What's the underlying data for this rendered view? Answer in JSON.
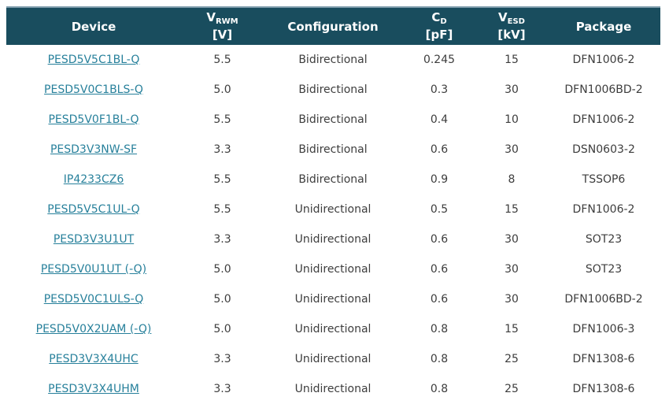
{
  "colors": {
    "header_bg": "#194d5e",
    "header_top_border": "#7f9dac",
    "header_text": "#ffffff",
    "link_color": "#27809b",
    "body_text": "#3d3d3d",
    "page_bg": "#ffffff"
  },
  "table": {
    "columns": [
      {
        "label": "Device"
      },
      {
        "base": "V",
        "sub": "RWM",
        "unit": "[V]"
      },
      {
        "label": "Configuration"
      },
      {
        "base": "C",
        "sub": "D",
        "unit": "[pF]"
      },
      {
        "base": "V",
        "sub": "ESD",
        "unit": "[kV]"
      },
      {
        "label": "Package"
      }
    ],
    "rows": [
      {
        "device": "PESD5V5C1BL-Q",
        "vrwm": "5.5",
        "configuration": "Bidirectional",
        "cd": "0.245",
        "vesd": "15",
        "package": "DFN1006-2"
      },
      {
        "device": "PESD5V0C1BLS-Q",
        "vrwm": "5.0",
        "configuration": "Bidirectional",
        "cd": "0.3",
        "vesd": "30",
        "package": "DFN1006BD-2"
      },
      {
        "device": "PESD5V0F1BL-Q",
        "vrwm": "5.5",
        "configuration": "Bidirectional",
        "cd": "0.4",
        "vesd": "10",
        "package": "DFN1006-2"
      },
      {
        "device": "PESD3V3NW-SF",
        "vrwm": "3.3",
        "configuration": "Bidirectional",
        "cd": "0.6",
        "vesd": "30",
        "package": "DSN0603-2"
      },
      {
        "device": "IP4233CZ6",
        "vrwm": "5.5",
        "configuration": "Bidirectional",
        "cd": "0.9",
        "vesd": "8",
        "package": "TSSOP6"
      },
      {
        "device": "PESD5V5C1UL-Q",
        "vrwm": "5.5",
        "configuration": "Unidirectional",
        "cd": "0.5",
        "vesd": "15",
        "package": "DFN1006-2"
      },
      {
        "device": "PESD3V3U1UT",
        "vrwm": "3.3",
        "configuration": "Unidirectional",
        "cd": "0.6",
        "vesd": "30",
        "package": "SOT23"
      },
      {
        "device": "PESD5V0U1UT (-Q)",
        "vrwm": "5.0",
        "configuration": "Unidirectional",
        "cd": "0.6",
        "vesd": "30",
        "package": "SOT23"
      },
      {
        "device": "PESD5V0C1ULS-Q",
        "vrwm": "5.0",
        "configuration": "Unidirectional",
        "cd": "0.6",
        "vesd": "30",
        "package": "DFN1006BD-2"
      },
      {
        "device": "PESD5V0X2UAM (-Q)",
        "vrwm": "5.0",
        "configuration": "Unidirectional",
        "cd": "0.8",
        "vesd": "15",
        "package": "DFN1006-3"
      },
      {
        "device": "PESD3V3X4UHC",
        "vrwm": "3.3",
        "configuration": "Unidirectional",
        "cd": "0.8",
        "vesd": "25",
        "package": "DFN1308-6"
      },
      {
        "device": "PESD3V3X4UHM",
        "vrwm": "3.3",
        "configuration": "Unidirectional",
        "cd": "0.8",
        "vesd": "25",
        "package": "DFN1308-6"
      }
    ]
  }
}
